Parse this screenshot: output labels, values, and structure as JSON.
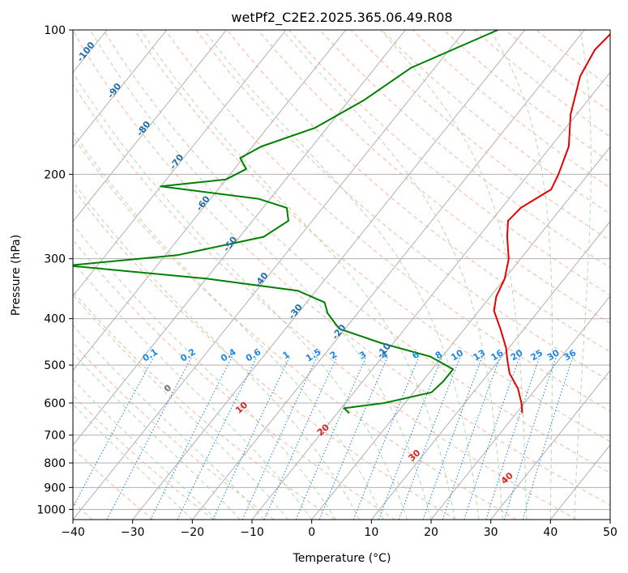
{
  "chart_data": {
    "type": "line",
    "subtype": "skew-t log-p",
    "title": "wetPf2_C2E2.2025.365.06.49.R08",
    "xlabel": "Temperature (°C)",
    "ylabel": "Pressure (hPa)",
    "xlim": [
      -40,
      50
    ],
    "ylim": [
      1050,
      100
    ],
    "y_scale": "log",
    "grid": true,
    "x_ticks": [
      -40,
      -30,
      -20,
      -10,
      0,
      10,
      20,
      30,
      40,
      50
    ],
    "y_ticks": [
      100,
      200,
      300,
      400,
      500,
      600,
      700,
      800,
      900,
      1000
    ],
    "x_tick_labels": [
      "−40",
      "−30",
      "−20",
      "−10",
      "0",
      "10",
      "20",
      "30",
      "40",
      "50"
    ],
    "y_tick_labels": [
      "100",
      "200",
      "300",
      "400",
      "500",
      "600",
      "700",
      "800",
      "900",
      "1000"
    ],
    "colors": {
      "temperature": "#e60000",
      "dewpoint": "#008000",
      "isotherm": "#b0b0b0",
      "dry_adiabat": "#f4a582",
      "moist_adiabat": "#9ecf9e",
      "mixing_ratio": "#1e88e5",
      "isotherm_label": "#1f6fa8",
      "dry_adiabat_label": "#d62728"
    },
    "series": [
      {
        "name": "",
        "color": "#e60000",
        "points": [
          {
            "p": 100,
            "t": -15.0
          },
          {
            "p": 110,
            "t": -15.6
          },
          {
            "p": 125,
            "t": -14.5
          },
          {
            "p": 150,
            "t": -11.0
          },
          {
            "p": 175,
            "t": -7.0
          },
          {
            "p": 200,
            "t": -5.0
          },
          {
            "p": 215,
            "t": -4.2
          },
          {
            "p": 235,
            "t": -6.8
          },
          {
            "p": 250,
            "t": -7.2
          },
          {
            "p": 270,
            "t": -5.2
          },
          {
            "p": 300,
            "t": -2.0
          },
          {
            "p": 330,
            "t": 0.0
          },
          {
            "p": 360,
            "t": 1.0
          },
          {
            "p": 385,
            "t": 2.5
          },
          {
            "p": 420,
            "t": 6.0
          },
          {
            "p": 460,
            "t": 9.5
          },
          {
            "p": 490,
            "t": 11.5
          },
          {
            "p": 520,
            "t": 13.5
          },
          {
            "p": 560,
            "t": 17.0
          },
          {
            "p": 600,
            "t": 19.5
          },
          {
            "p": 630,
            "t": 21.0
          }
        ]
      },
      {
        "name": "",
        "color": "#008000",
        "points": [
          {
            "p": 100,
            "t": -34.5
          },
          {
            "p": 120,
            "t": -44.0
          },
          {
            "p": 140,
            "t": -47.5
          },
          {
            "p": 160,
            "t": -52.0
          },
          {
            "p": 175,
            "t": -58.5
          },
          {
            "p": 185,
            "t": -60.5
          },
          {
            "p": 195,
            "t": -58.0
          },
          {
            "p": 205,
            "t": -60.0
          },
          {
            "p": 212,
            "t": -70.0
          },
          {
            "p": 225,
            "t": -52.0
          },
          {
            "p": 235,
            "t": -46.0
          },
          {
            "p": 250,
            "t": -44.0
          },
          {
            "p": 270,
            "t": -46.0
          },
          {
            "p": 295,
            "t": -58.0
          },
          {
            "p": 310,
            "t": -75.0
          },
          {
            "p": 330,
            "t": -50.0
          },
          {
            "p": 350,
            "t": -33.0
          },
          {
            "p": 370,
            "t": -27.0
          },
          {
            "p": 390,
            "t": -25.0
          },
          {
            "p": 420,
            "t": -21.0
          },
          {
            "p": 450,
            "t": -12.0
          },
          {
            "p": 480,
            "t": -2.0
          },
          {
            "p": 510,
            "t": 3.5
          },
          {
            "p": 540,
            "t": 3.5
          },
          {
            "p": 570,
            "t": 3.0
          },
          {
            "p": 600,
            "t": -3.5
          },
          {
            "p": 615,
            "t": -9.5
          },
          {
            "p": 630,
            "t": -8.0
          }
        ]
      }
    ],
    "isotherm_labels": [
      -100,
      -90,
      -80,
      -70,
      -60,
      -50,
      -40,
      -30,
      -20,
      -10
    ],
    "isotherm_label_pressures": [
      112,
      135,
      162,
      190,
      232,
      282,
      335,
      390,
      430,
      470
    ],
    "isotherm_label_texts": [
      "-100",
      "-90",
      "-80",
      "-70",
      "-60",
      "-50",
      "-40",
      "-30",
      "-20",
      "-10"
    ],
    "dry_adiabat_labels": [
      0,
      10,
      20,
      30,
      40
    ],
    "dry_adiabat_label_pressures": [
      565,
      620,
      690,
      780,
      870
    ],
    "dry_adiabat_label_texts": [
      "0",
      "10",
      "20",
      "30",
      "40"
    ],
    "mixing_ratio_lines": [
      0.1,
      0.2,
      0.4,
      0.6,
      1,
      1.5,
      2,
      3,
      4,
      6,
      8,
      10,
      13,
      16,
      20,
      25,
      30,
      36
    ],
    "mixing_ratio_label_texts": [
      "0.1",
      "0.2",
      "0.4",
      "0.6",
      "1",
      "1.5",
      "2",
      "3",
      "4",
      "6",
      "8",
      "10",
      "13",
      "16",
      "20",
      "25",
      "30",
      "36"
    ],
    "mixing_ratio_label_pressure": 490
  }
}
